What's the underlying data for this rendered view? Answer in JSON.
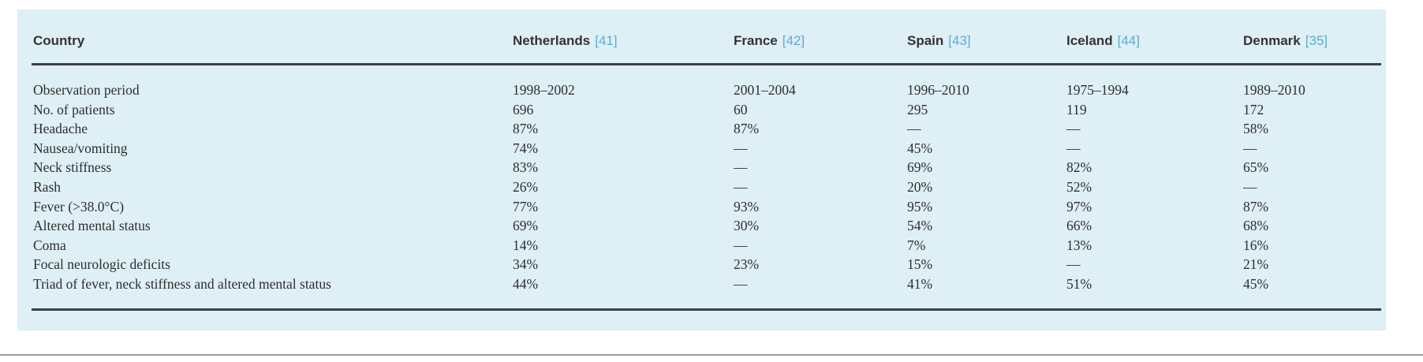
{
  "table": {
    "columns": [
      {
        "label": "Country",
        "ref": ""
      },
      {
        "label": "Netherlands",
        "ref": "[41]"
      },
      {
        "label": "France",
        "ref": "[42]"
      },
      {
        "label": "Spain",
        "ref": "[43]"
      },
      {
        "label": "Iceland",
        "ref": "[44]"
      },
      {
        "label": "Denmark",
        "ref": "[35]"
      }
    ],
    "rows": [
      [
        "Observation period",
        "1998–2002",
        "2001–2004",
        "1996–2010",
        "1975–1994",
        "1989–2010"
      ],
      [
        "No. of patients",
        "696",
        "60",
        "295",
        "119",
        "172"
      ],
      [
        "Headache",
        "87%",
        "87%",
        "—",
        "—",
        "58%"
      ],
      [
        "Nausea/vomiting",
        "74%",
        "—",
        "45%",
        "—",
        "—"
      ],
      [
        "Neck stiffness",
        "83%",
        "—",
        "69%",
        "82%",
        "65%"
      ],
      [
        "Rash",
        "26%",
        "—",
        "20%",
        "52%",
        "—"
      ],
      [
        "Fever (>38.0°C)",
        "77%",
        "93%",
        "95%",
        "97%",
        "87%"
      ],
      [
        "Altered mental status",
        "69%",
        "30%",
        "54%",
        "66%",
        "68%"
      ],
      [
        "Coma",
        "14%",
        "—",
        "7%",
        "13%",
        "16%"
      ],
      [
        "Focal neurologic deficits",
        "34%",
        "23%",
        "15%",
        "—",
        "21%"
      ],
      [
        "Triad of fever, neck stiffness and altered mental status",
        "44%",
        "—",
        "41%",
        "51%",
        "45%"
      ]
    ]
  },
  "colors": {
    "panel_background": "#deeff5",
    "reference_link": "#5aaed2",
    "rule": "#3c3f44"
  }
}
